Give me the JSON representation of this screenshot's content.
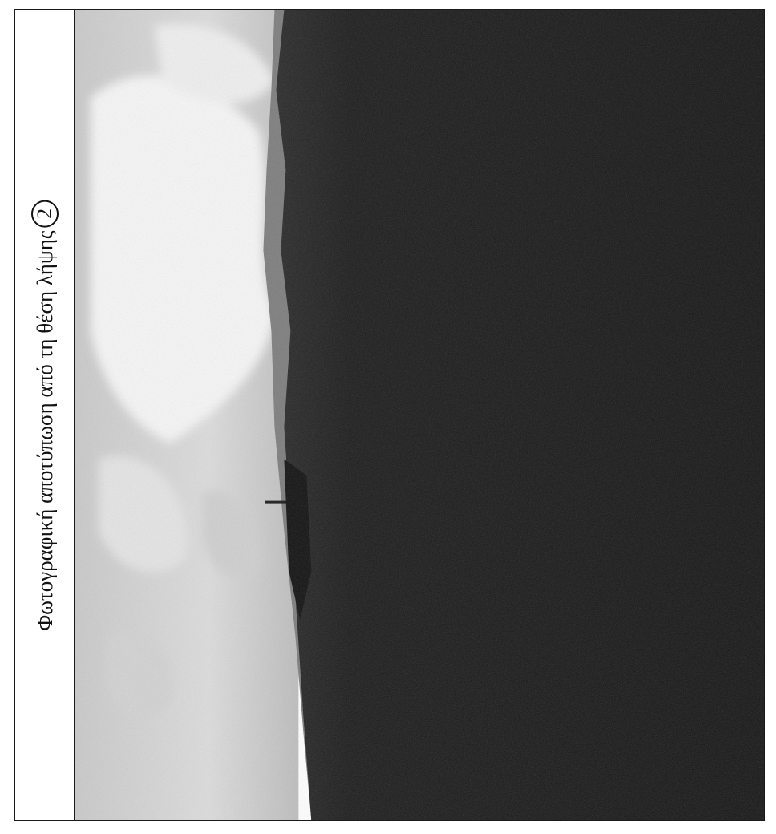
{
  "caption": {
    "text": "Φωτογραφική αποτύπωση από τη θέση λήψης",
    "position_number": "2"
  },
  "photo": {
    "subject": "sea-and-horizon-photograph",
    "orientation": "rotated-90-ccw",
    "colors": {
      "sky": "#d9d9d9",
      "clouds": "#f4f4f4",
      "sea": "#1b1b1b",
      "land": "#3a3a3a"
    }
  }
}
